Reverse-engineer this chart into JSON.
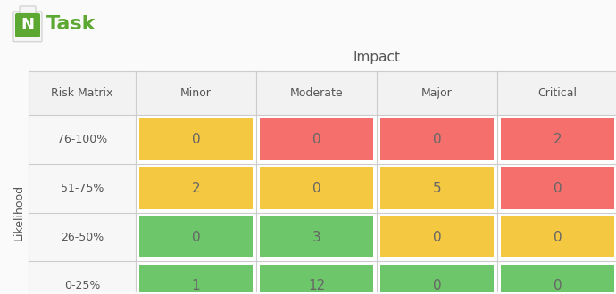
{
  "title": "Impact",
  "row_label": "Likelihood",
  "col_header": [
    "Minor",
    "Moderate",
    "Major",
    "Critical"
  ],
  "row_header": [
    "76-100%",
    "51-75%",
    "26-50%",
    "0-25%"
  ],
  "corner_label": "Risk Matrix",
  "values": [
    [
      0,
      0,
      0,
      2
    ],
    [
      2,
      0,
      5,
      0
    ],
    [
      0,
      3,
      0,
      0
    ],
    [
      1,
      12,
      0,
      0
    ]
  ],
  "colors": [
    [
      "#F5C842",
      "#F5706C",
      "#F5706C",
      "#F5706C"
    ],
    [
      "#F5C842",
      "#F5C842",
      "#F5C842",
      "#F5706C"
    ],
    [
      "#6DC76A",
      "#6DC76A",
      "#F5C842",
      "#F5C842"
    ],
    [
      "#6DC76A",
      "#6DC76A",
      "#6DC76A",
      "#6DC76A"
    ]
  ],
  "bg_color": "#FFFFFF",
  "header_bg": "#F2F2F2",
  "row_bg": "#F7F7F7",
  "border_color": "#CCCCCC",
  "text_color": "#555555",
  "cell_text_color": "#666666",
  "title_color": "#555555",
  "logo_green": "#5DA832",
  "logo_text": "Task",
  "logo_text_color": "#5DA832",
  "outer_border_color": "#CCCCCC",
  "fig_bg": "#FAFAFA"
}
